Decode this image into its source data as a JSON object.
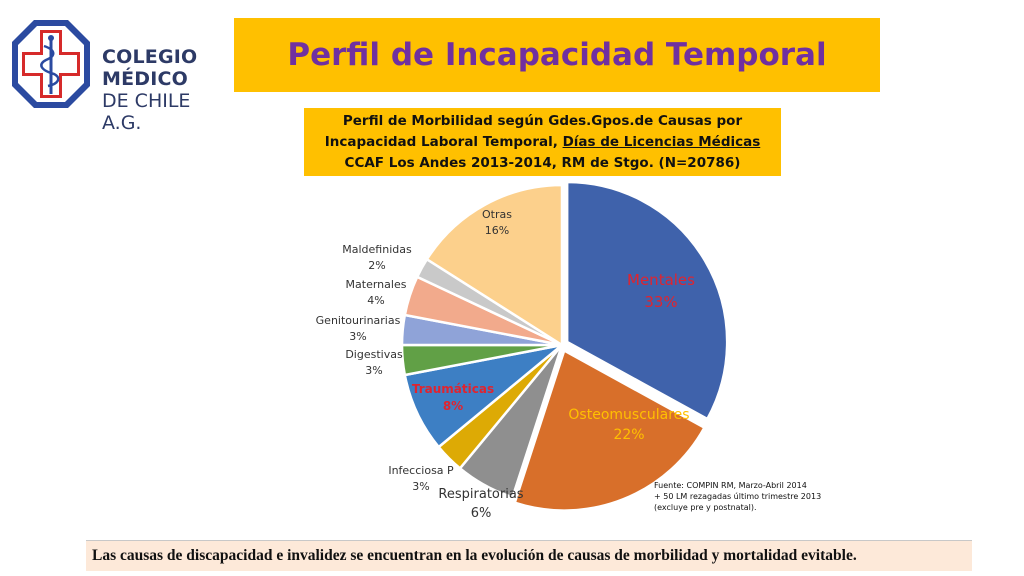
{
  "logo": {
    "line1": "COLEGIO MÉDICO",
    "line2": "DE CHILE A.G."
  },
  "header": {
    "title": "Perfil de Incapacidad Temporal"
  },
  "chart_data": {
    "type": "pie",
    "title_parts": {
      "pre": "Perfil de Morbilidad según Gdes.Gpos.de Causas por Incapacidad Laboral Temporal, ",
      "underlined": "Días de Licencias Médicas",
      "post": " CCAF Los Andes 2013-2014, RM de Stgo. (N=20786)"
    },
    "slices": [
      {
        "label": "Mentales",
        "value": 33,
        "display": "33%",
        "color": "#3f62ab",
        "label_color": "#e0242f"
      },
      {
        "label": "Osteomusculares",
        "value": 22,
        "display": "22%",
        "color": "#d86f2a",
        "label_color": "#ffc000"
      },
      {
        "label": "Respiratorias",
        "value": 6,
        "display": "6%",
        "color": "#8f8f8f",
        "label_color": "#333333"
      },
      {
        "label": "Infecciosa P",
        "value": 3,
        "display": "3%",
        "color": "#ddaa05",
        "label_color": "#333333"
      },
      {
        "label": "Traumáticas",
        "value": 8,
        "display": "8%",
        "color": "#3d7fc4",
        "label_color": "#e0242f"
      },
      {
        "label": "Digestivas",
        "value": 3,
        "display": "3%",
        "color": "#61a046",
        "label_color": "#333333"
      },
      {
        "label": "Genitourinarias",
        "value": 3,
        "display": "3%",
        "color": "#8fa3d8",
        "label_color": "#333333"
      },
      {
        "label": "Maternales",
        "value": 4,
        "display": "4%",
        "color": "#f2aa8c",
        "label_color": "#333333"
      },
      {
        "label": "Maldefinidas",
        "value": 2,
        "display": "2%",
        "color": "#c9c9c9",
        "label_color": "#333333"
      },
      {
        "label": "Otras",
        "value": 16,
        "display": "16%",
        "color": "#fcd08c",
        "label_color": "#333333"
      }
    ]
  },
  "source": {
    "text": "Fuente: COMPIN RM, Marzo-Abril 2014\n+ 50 LM rezagadas  último  trimestre 2013\n(excluye pre y postnatal)."
  },
  "footer": {
    "text": "Las causas de discapacidad e invalidez se encuentran en la evolución de causas de morbilidad y mortalidad evitable."
  }
}
